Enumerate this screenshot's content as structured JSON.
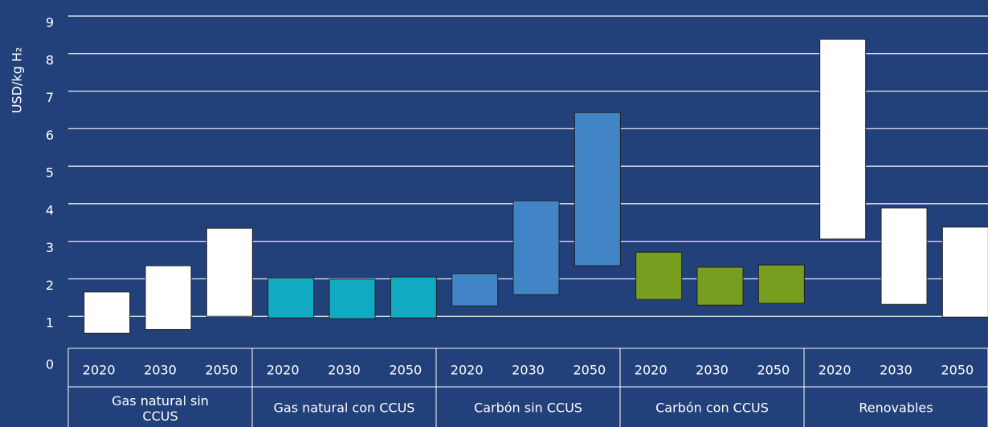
{
  "chart_data": {
    "type": "range_bar",
    "ylabel": "USD/kg H₂",
    "ylim": [
      0,
      9
    ],
    "yticks": [
      0,
      1,
      2,
      3,
      4,
      5,
      6,
      7,
      8,
      9
    ],
    "grid": true,
    "groups": [
      {
        "name": "Gas natural sin CCUS",
        "color": "#ffffff",
        "categories": [
          "2020",
          "2030",
          "2050"
        ],
        "low": [
          0.55,
          0.65,
          1.0
        ],
        "high": [
          1.65,
          2.35,
          3.35
        ]
      },
      {
        "name": "Gas natural con  CCUS",
        "color": "#12a9c2",
        "categories": [
          "2020",
          "2030",
          "2050"
        ],
        "low": [
          0.96,
          0.94,
          0.96
        ],
        "high": [
          2.03,
          1.99,
          2.05
        ]
      },
      {
        "name": "Carbón sin CCUS",
        "color": "#4285c6",
        "categories": [
          "2020",
          "2030",
          "2050"
        ],
        "low": [
          1.28,
          1.58,
          2.35
        ],
        "high": [
          2.14,
          4.08,
          6.43
        ]
      },
      {
        "name": "Carbón con CCUS",
        "color": "#779e1f",
        "categories": [
          "2020",
          "2030",
          "2050"
        ],
        "low": [
          1.45,
          1.3,
          1.35
        ],
        "high": [
          2.71,
          2.31,
          2.37
        ]
      },
      {
        "name": "Renovables",
        "color": "#ffffff",
        "categories": [
          "2020",
          "2030",
          "2050"
        ],
        "low": [
          3.06,
          1.32,
          0.98
        ],
        "high": [
          8.38,
          3.89,
          3.38
        ]
      }
    ]
  }
}
